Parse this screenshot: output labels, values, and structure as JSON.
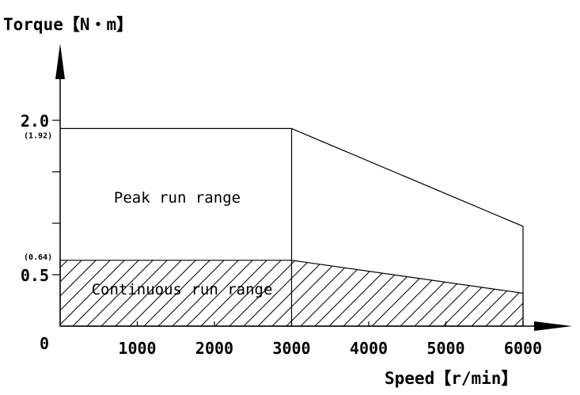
{
  "chart_data": {
    "type": "area",
    "ylabel": "Torque【N・m】",
    "xlabel": "Speed【r/min】",
    "xlim": [
      0,
      6000
    ],
    "ylim": [
      0,
      2.6
    ],
    "x_ticks": [
      0,
      1000,
      2000,
      3000,
      4000,
      5000,
      6000
    ],
    "x_tick_labels": [
      "0",
      "1000",
      "2000",
      "3000",
      "4000",
      "5000",
      "6000"
    ],
    "y_ticks": [
      0.5,
      1.0,
      1.5,
      2.0
    ],
    "y_tick_labels": [
      "0.5",
      "2.0"
    ],
    "y_secondary_labels": [
      {
        "value": 1.92,
        "label": "(1.92)"
      },
      {
        "value": 0.64,
        "label": "(0.64)"
      }
    ],
    "series": [
      {
        "name": "Peak run range",
        "x": [
          0,
          3000,
          6000
        ],
        "y": [
          1.92,
          1.92,
          0.97
        ]
      },
      {
        "name": "Continuous run range",
        "x": [
          0,
          3000,
          6000
        ],
        "y": [
          0.64,
          0.64,
          0.32
        ]
      }
    ]
  }
}
